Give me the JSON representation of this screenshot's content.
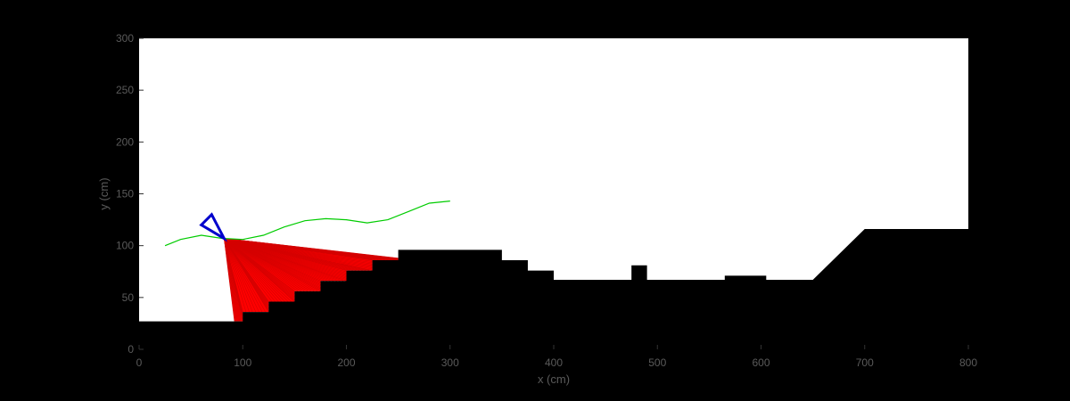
{
  "chart_data": {
    "type": "line",
    "title": "",
    "xlabel": "x (cm)",
    "ylabel": "y (cm)",
    "xlim": [
      0,
      800
    ],
    "ylim": [
      0,
      300
    ],
    "xticks": [
      "0",
      "100",
      "200",
      "300",
      "400",
      "500",
      "600",
      "700",
      "800"
    ],
    "yticks": [
      "0",
      "50",
      "100",
      "150",
      "200",
      "250",
      "300"
    ],
    "grid": false,
    "legend": "none",
    "colors": {
      "figure_background": "#000000",
      "axes_background": "#ffffff",
      "terrain": "#000000",
      "path": "#00cc00",
      "robot": "#0000cc",
      "sensor_rays": "#ff0000",
      "tick_labels": "#5a5a5a"
    },
    "terrain_polygon": [
      [
        0,
        0
      ],
      [
        0,
        27
      ],
      [
        100,
        27
      ],
      [
        100,
        36
      ],
      [
        125,
        36
      ],
      [
        125,
        46
      ],
      [
        150,
        46
      ],
      [
        150,
        56
      ],
      [
        175,
        56
      ],
      [
        175,
        66
      ],
      [
        200,
        66
      ],
      [
        200,
        76
      ],
      [
        225,
        76
      ],
      [
        225,
        86
      ],
      [
        250,
        86
      ],
      [
        250,
        96
      ],
      [
        350,
        96
      ],
      [
        350,
        86
      ],
      [
        375,
        86
      ],
      [
        375,
        76
      ],
      [
        400,
        76
      ],
      [
        400,
        67
      ],
      [
        475,
        67
      ],
      [
        475,
        81
      ],
      [
        490,
        81
      ],
      [
        490,
        67
      ],
      [
        565,
        67
      ],
      [
        565,
        71
      ],
      [
        605,
        71
      ],
      [
        605,
        67
      ],
      [
        650,
        67
      ],
      [
        700,
        116
      ],
      [
        800,
        116
      ],
      [
        800,
        0
      ]
    ],
    "path": {
      "x": [
        25,
        40,
        60,
        80,
        100,
        120,
        140,
        160,
        180,
        200,
        220,
        240,
        260,
        280,
        300
      ],
      "y": [
        100,
        106,
        110,
        107,
        106,
        110,
        118,
        124,
        126,
        125,
        122,
        125,
        133,
        141,
        143
      ]
    },
    "robot": {
      "vertices": [
        [
          82,
          107
        ],
        [
          60,
          120
        ],
        [
          70,
          130
        ]
      ]
    },
    "sensor": {
      "origin": [
        82,
        107
      ],
      "ray_endpoints": [
        [
          92,
          27
        ],
        [
          100,
          27
        ],
        [
          100,
          36
        ],
        [
          125,
          36
        ],
        [
          125,
          46
        ],
        [
          150,
          46
        ],
        [
          150,
          56
        ],
        [
          175,
          56
        ],
        [
          175,
          66
        ],
        [
          200,
          66
        ],
        [
          200,
          76
        ],
        [
          225,
          76
        ],
        [
          225,
          86
        ],
        [
          250,
          86
        ],
        [
          250,
          88
        ]
      ]
    }
  }
}
